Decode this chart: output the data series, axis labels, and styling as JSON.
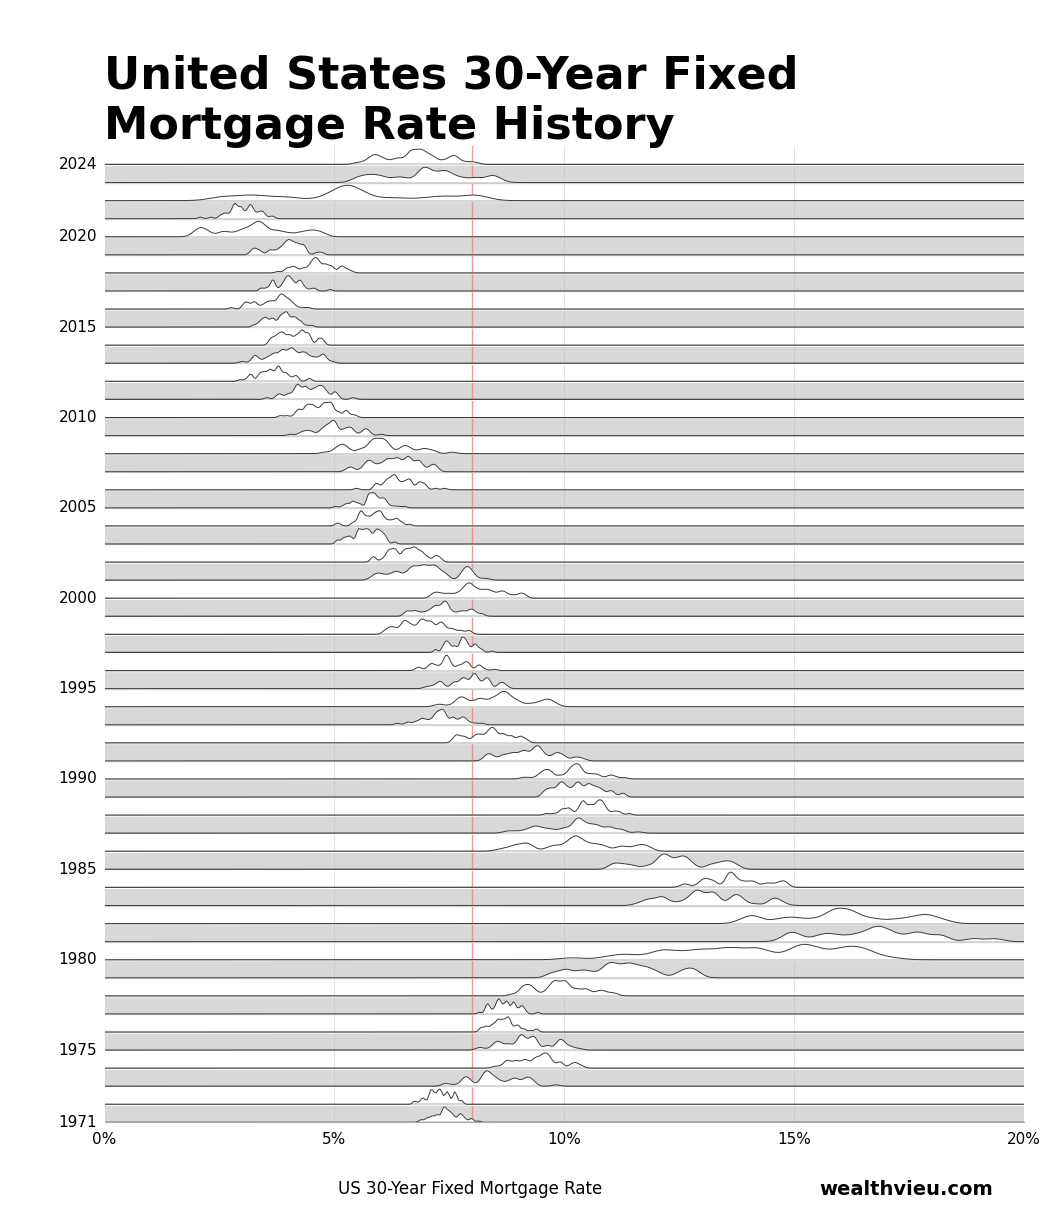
{
  "title": "United States 30-Year Fixed\nMortgage Rate History",
  "xlabel": "US 30-Year Fixed Mortgage Rate",
  "watermark": "wealthvieu.com",
  "start_year": 1971,
  "end_year": 2024,
  "x_min": 0.0,
  "x_max": 0.2,
  "x_ticks": [
    0.0,
    0.05,
    0.1,
    0.15,
    0.2
  ],
  "x_tick_labels": [
    "0%",
    "5%",
    "10%",
    "15%",
    "20%"
  ],
  "red_line_x": 0.08,
  "background_color": "#ffffff",
  "line_color": "#3a3a3a",
  "stripe_color": "#d8d8d8",
  "red_line_color": "#f08080",
  "title_fontsize": 32,
  "title_fontweight": "bold",
  "xlabel_fontsize": 12,
  "watermark_fontsize": 14,
  "watermark_fontweight": "bold",
  "year_label_fontsize": 11
}
